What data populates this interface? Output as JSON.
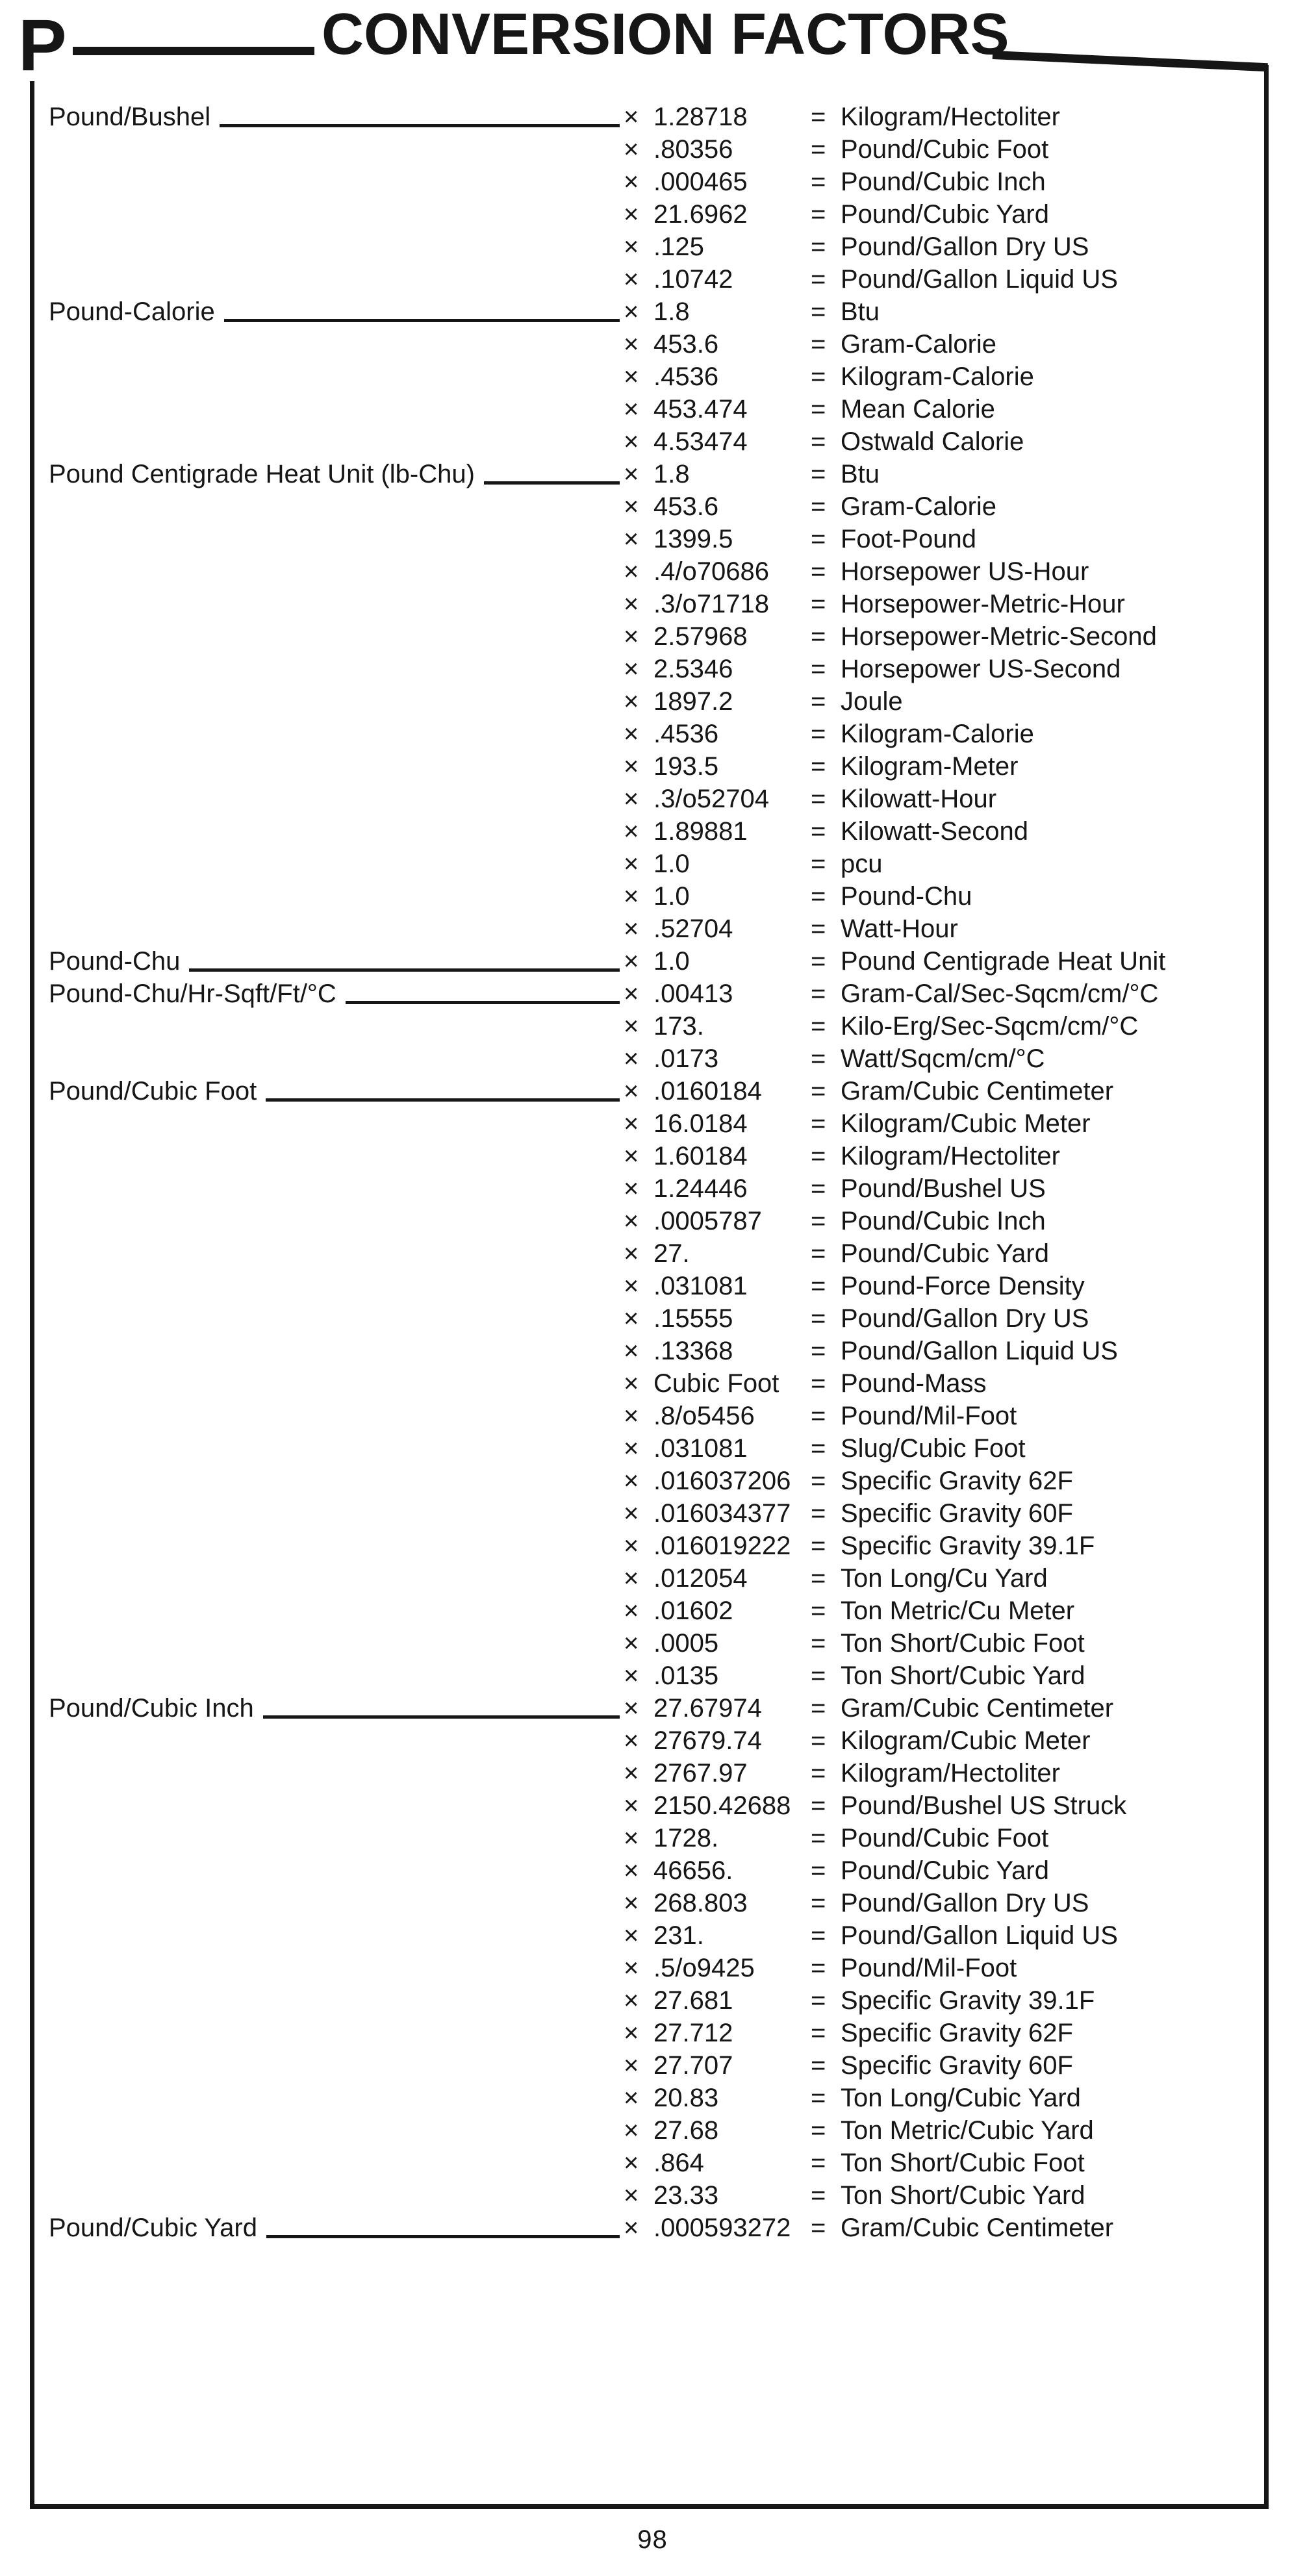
{
  "page": {
    "section_letter": "P",
    "title": "CONVERSION FACTORS",
    "page_number": "98"
  },
  "symbols": {
    "times": "×",
    "equals": "="
  },
  "table": {
    "rows": [
      {
        "label": "Pound/Bushel",
        "factor": "1.28718",
        "unit": "Kilogram/Hectoliter"
      },
      {
        "label": "",
        "factor": ".80356",
        "unit": "Pound/Cubic Foot"
      },
      {
        "label": "",
        "factor": ".000465",
        "unit": "Pound/Cubic Inch"
      },
      {
        "label": "",
        "factor": "21.6962",
        "unit": "Pound/Cubic Yard"
      },
      {
        "label": "",
        "factor": ".125",
        "unit": "Pound/Gallon Dry US"
      },
      {
        "label": "",
        "factor": ".10742",
        "unit": "Pound/Gallon Liquid US"
      },
      {
        "label": "Pound-Calorie",
        "factor": "1.8",
        "unit": "Btu"
      },
      {
        "label": "",
        "factor": "453.6",
        "unit": "Gram-Calorie"
      },
      {
        "label": "",
        "factor": ".4536",
        "unit": "Kilogram-Calorie"
      },
      {
        "label": "",
        "factor": "453.474",
        "unit": "Mean Calorie"
      },
      {
        "label": "",
        "factor": "4.53474",
        "unit": "Ostwald Calorie"
      },
      {
        "label": "Pound Centigrade Heat Unit (lb-Chu)",
        "factor": "1.8",
        "unit": "Btu"
      },
      {
        "label": "",
        "factor": "453.6",
        "unit": "Gram-Calorie"
      },
      {
        "label": "",
        "factor": "1399.5",
        "unit": "Foot-Pound"
      },
      {
        "label": "",
        "factor": ".4/o70686",
        "unit": "Horsepower US-Hour"
      },
      {
        "label": "",
        "factor": ".3/o71718",
        "unit": "Horsepower-Metric-Hour"
      },
      {
        "label": "",
        "factor": "2.57968",
        "unit": "Horsepower-Metric-Second"
      },
      {
        "label": "",
        "factor": "2.5346",
        "unit": "Horsepower US-Second"
      },
      {
        "label": "",
        "factor": "1897.2",
        "unit": "Joule"
      },
      {
        "label": "",
        "factor": ".4536",
        "unit": "Kilogram-Calorie"
      },
      {
        "label": "",
        "factor": "193.5",
        "unit": "Kilogram-Meter"
      },
      {
        "label": "",
        "factor": ".3/o52704",
        "unit": "Kilowatt-Hour"
      },
      {
        "label": "",
        "factor": "1.89881",
        "unit": "Kilowatt-Second"
      },
      {
        "label": "",
        "factor": "1.0",
        "unit": "pcu"
      },
      {
        "label": "",
        "factor": "1.0",
        "unit": "Pound-Chu"
      },
      {
        "label": "",
        "factor": ".52704",
        "unit": "Watt-Hour"
      },
      {
        "label": "Pound-Chu",
        "factor": "1.0",
        "unit": "Pound Centigrade Heat Unit"
      },
      {
        "label": "Pound-Chu/Hr-Sqft/Ft/°C",
        "factor": ".00413",
        "unit": "Gram-Cal/Sec-Sqcm/cm/°C"
      },
      {
        "label": "",
        "factor": "173.",
        "unit": "Kilo-Erg/Sec-Sqcm/cm/°C"
      },
      {
        "label": "",
        "factor": ".0173",
        "unit": "Watt/Sqcm/cm/°C"
      },
      {
        "label": "Pound/Cubic Foot",
        "factor": ".0160184",
        "unit": "Gram/Cubic Centimeter"
      },
      {
        "label": "",
        "factor": "16.0184",
        "unit": "Kilogram/Cubic Meter"
      },
      {
        "label": "",
        "factor": "1.60184",
        "unit": "Kilogram/Hectoliter"
      },
      {
        "label": "",
        "factor": "1.24446",
        "unit": "Pound/Bushel US"
      },
      {
        "label": "",
        "factor": ".0005787",
        "unit": "Pound/Cubic Inch"
      },
      {
        "label": "",
        "factor": "27.",
        "unit": "Pound/Cubic Yard"
      },
      {
        "label": "",
        "factor": ".031081",
        "unit": "Pound-Force Density"
      },
      {
        "label": "",
        "factor": ".15555",
        "unit": "Pound/Gallon Dry US"
      },
      {
        "label": "",
        "factor": ".13368",
        "unit": "Pound/Gallon Liquid US"
      },
      {
        "label": "",
        "factor": "Cubic Foot",
        "unit": "Pound-Mass"
      },
      {
        "label": "",
        "factor": ".8/o5456",
        "unit": "Pound/Mil-Foot"
      },
      {
        "label": "",
        "factor": ".031081",
        "unit": "Slug/Cubic Foot"
      },
      {
        "label": "",
        "factor": ".016037206",
        "unit": "Specific Gravity 62F"
      },
      {
        "label": "",
        "factor": ".016034377",
        "unit": "Specific Gravity 60F"
      },
      {
        "label": "",
        "factor": ".016019222",
        "unit": "Specific Gravity 39.1F"
      },
      {
        "label": "",
        "factor": ".012054",
        "unit": "Ton Long/Cu Yard"
      },
      {
        "label": "",
        "factor": ".01602",
        "unit": "Ton Metric/Cu Meter"
      },
      {
        "label": "",
        "factor": ".0005",
        "unit": "Ton Short/Cubic Foot"
      },
      {
        "label": "",
        "factor": ".0135",
        "unit": "Ton Short/Cubic Yard"
      },
      {
        "label": "Pound/Cubic Inch",
        "factor": "27.67974",
        "unit": "Gram/Cubic Centimeter"
      },
      {
        "label": "",
        "factor": "27679.74",
        "unit": "Kilogram/Cubic Meter"
      },
      {
        "label": "",
        "factor": "2767.97",
        "unit": "Kilogram/Hectoliter"
      },
      {
        "label": "",
        "factor": "2150.42688",
        "unit": "Pound/Bushel US Struck"
      },
      {
        "label": "",
        "factor": "1728.",
        "unit": "Pound/Cubic Foot"
      },
      {
        "label": "",
        "factor": "46656.",
        "unit": "Pound/Cubic Yard"
      },
      {
        "label": "",
        "factor": "268.803",
        "unit": "Pound/Gallon Dry US"
      },
      {
        "label": "",
        "factor": "231.",
        "unit": "Pound/Gallon Liquid US"
      },
      {
        "label": "",
        "factor": ".5/o9425",
        "unit": "Pound/Mil-Foot"
      },
      {
        "label": "",
        "factor": "27.681",
        "unit": "Specific Gravity 39.1F"
      },
      {
        "label": "",
        "factor": "27.712",
        "unit": "Specific Gravity 62F"
      },
      {
        "label": "",
        "factor": "27.707",
        "unit": "Specific Gravity 60F"
      },
      {
        "label": "",
        "factor": "20.83",
        "unit": "Ton Long/Cubic Yard"
      },
      {
        "label": "",
        "factor": "27.68",
        "unit": "Ton Metric/Cubic Yard"
      },
      {
        "label": "",
        "factor": ".864",
        "unit": "Ton Short/Cubic Foot"
      },
      {
        "label": "",
        "factor": "23.33",
        "unit": "Ton Short/Cubic Yard"
      },
      {
        "label": "Pound/Cubic Yard",
        "factor": ".000593272",
        "unit": "Gram/Cubic Centimeter"
      }
    ]
  }
}
